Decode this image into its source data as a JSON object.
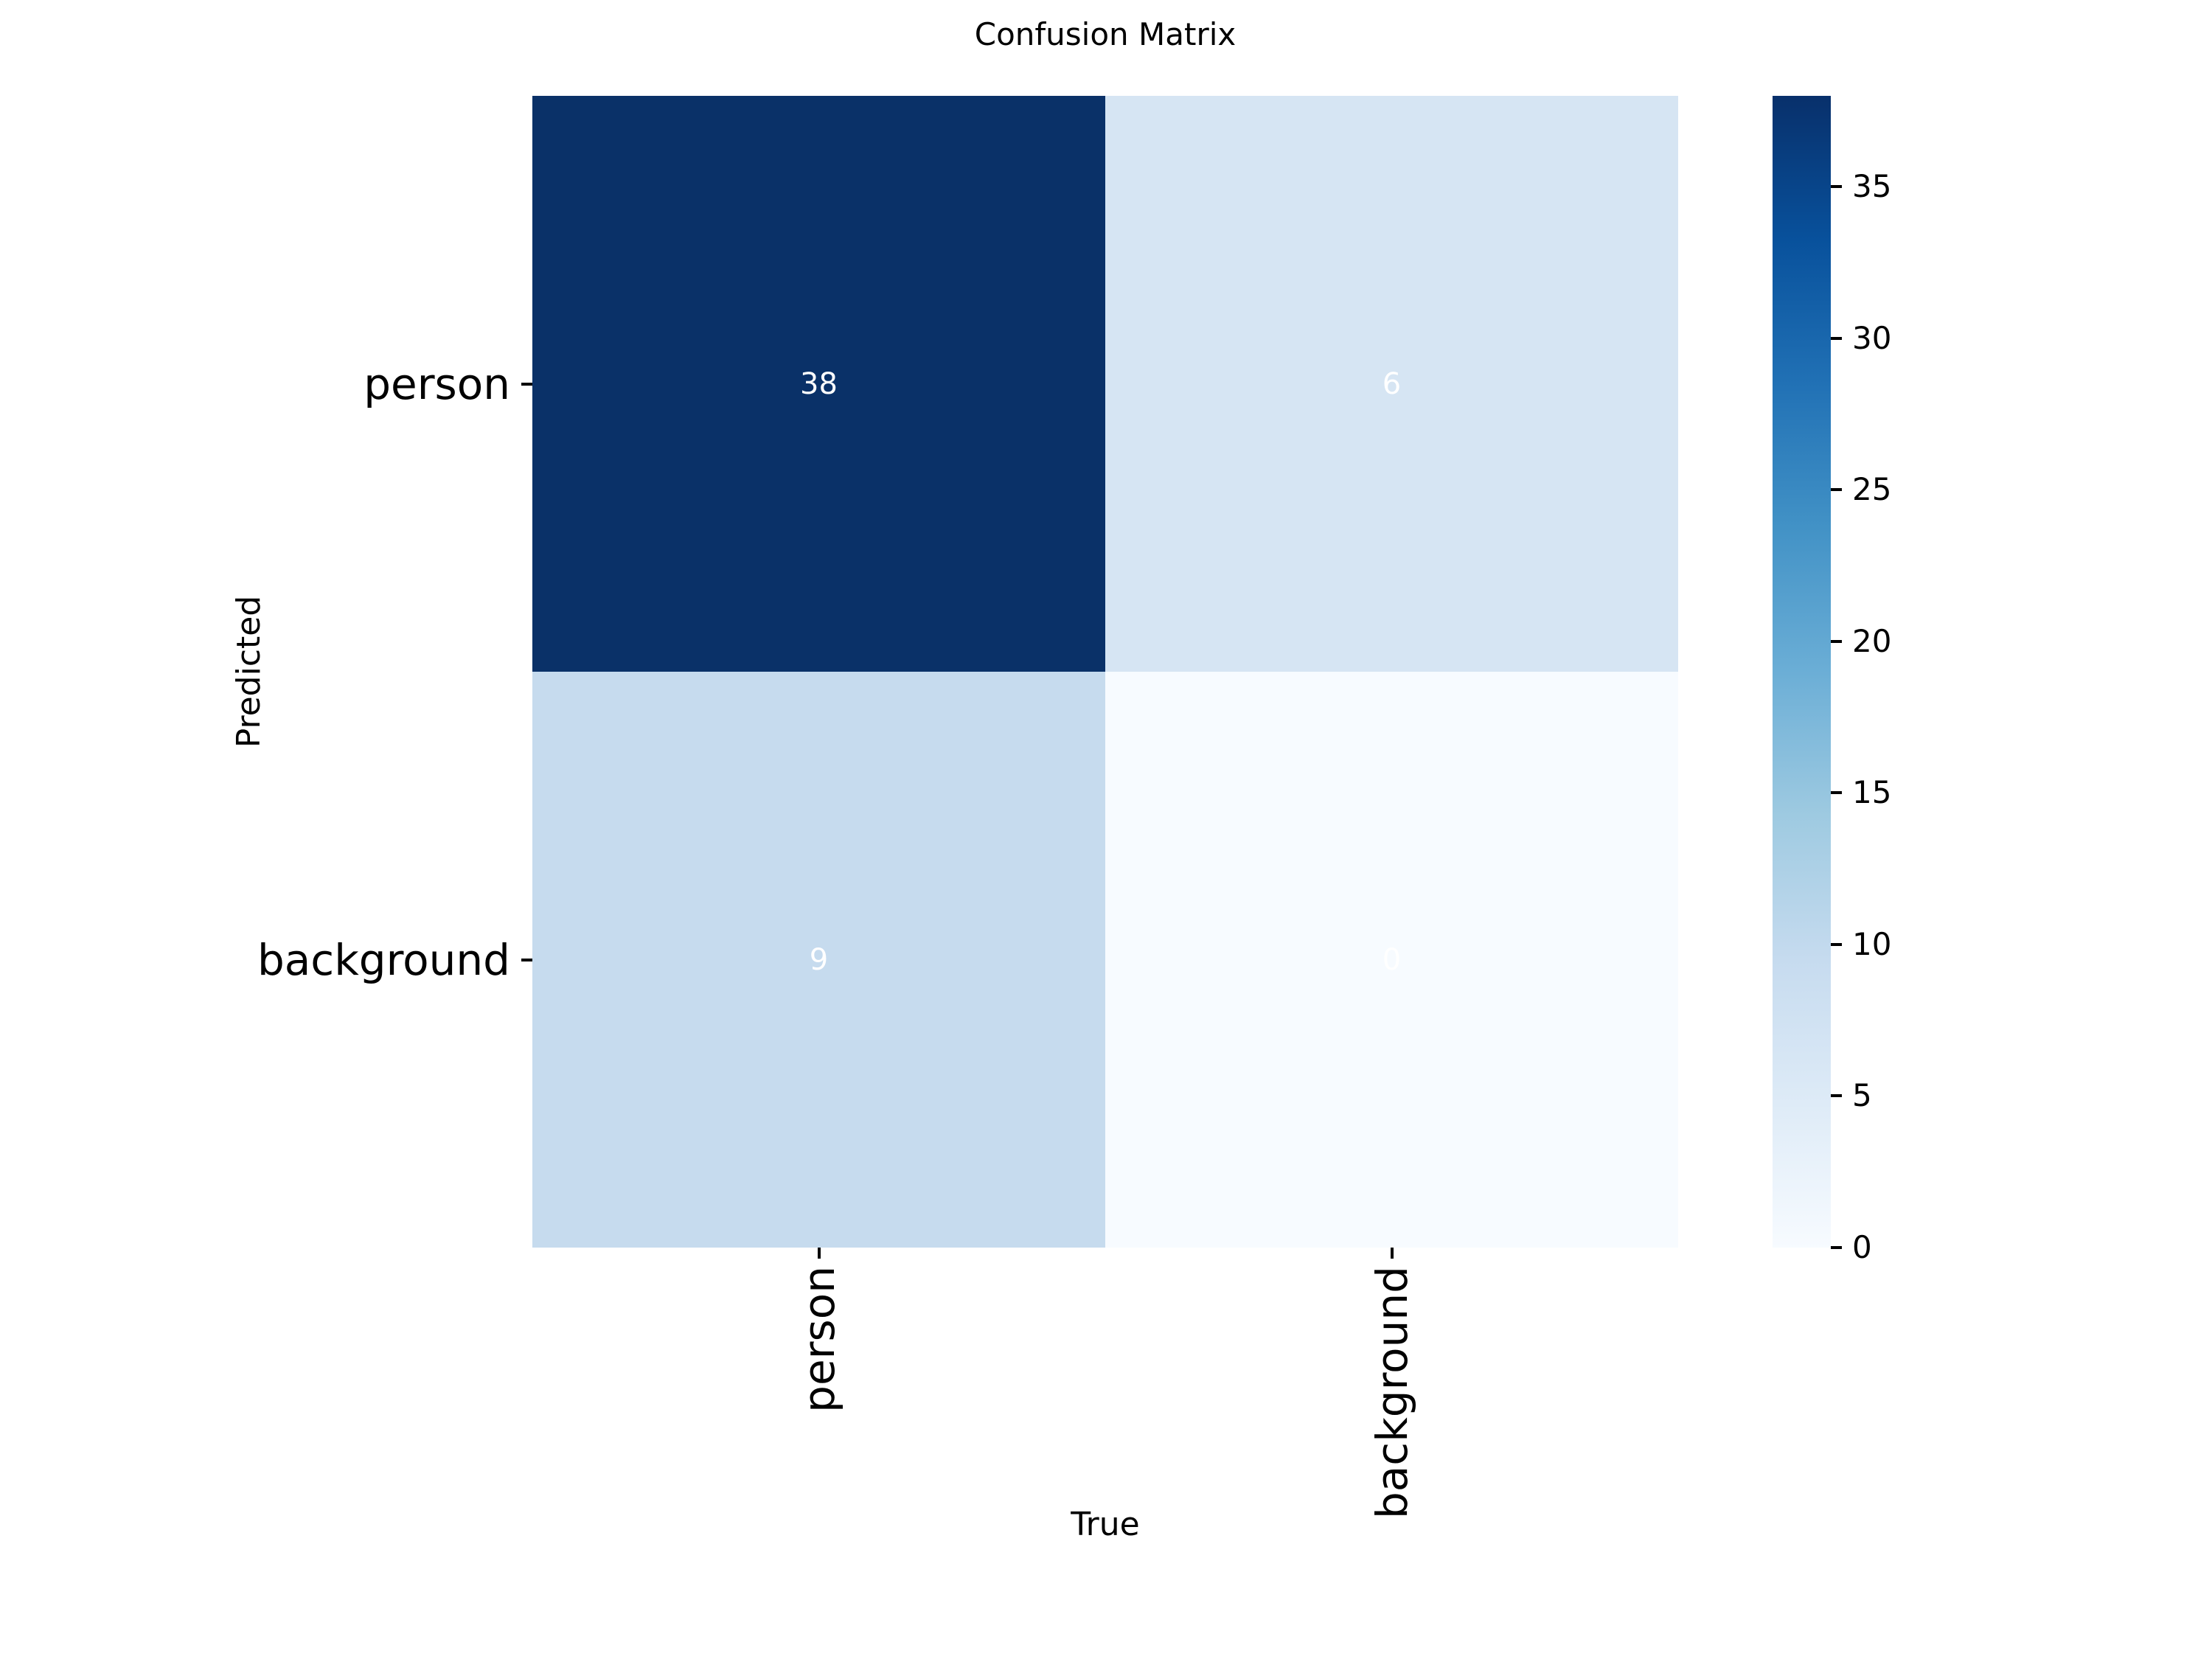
{
  "chart_data": {
    "type": "heatmap",
    "title": "Confusion Matrix",
    "xlabel": "True",
    "ylabel": "Predicted",
    "x_categories": [
      "person",
      "background"
    ],
    "y_categories": [
      "person",
      "background"
    ],
    "matrix": [
      [
        38,
        6
      ],
      [
        9,
        0
      ]
    ],
    "cell_colors": [
      [
        "#0a3168",
        "#d6e5f3"
      ],
      [
        "#c6dbee",
        "#f7fbff"
      ]
    ],
    "annotation_color": "#ffffff",
    "colormap": "Blues",
    "vmin": 0,
    "vmax": 38,
    "colorbar_ticks": [
      0,
      5,
      10,
      15,
      20,
      25,
      30,
      35
    ],
    "colormap_stops": [
      "#f7fbff",
      "#deebf7",
      "#c6dbef",
      "#9ecae1",
      "#6baed6",
      "#4292c6",
      "#2171b5",
      "#08519c",
      "#08306b"
    ],
    "legend_position": "right-colorbar",
    "grid": false
  }
}
